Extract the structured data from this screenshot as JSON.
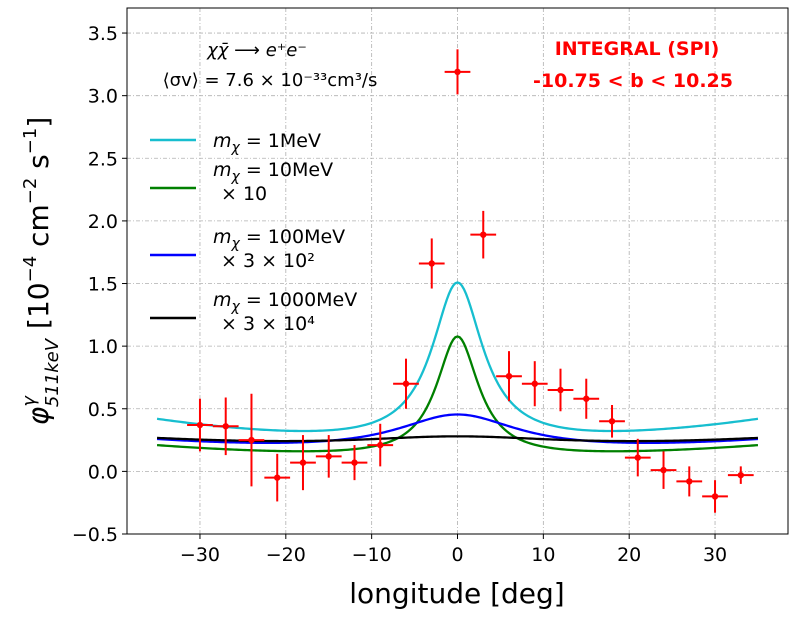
{
  "chart_data": {
    "type": "line",
    "xlabel": "longitude [deg]",
    "ylabel_sym": "φ",
    "ylabel_sup": "γ",
    "ylabel_sub": "511keV",
    "ylabel_unit": "[10",
    "ylabel_unit_exp1": "−4",
    "ylabel_unit_mid": " cm",
    "ylabel_unit_exp2": "−2",
    "ylabel_unit_end": " s",
    "ylabel_unit_exp3": "−1",
    "ylabel_unit_close": "]",
    "xlim": [
      -38.5,
      38.5
    ],
    "ylim": [
      -0.5,
      3.7
    ],
    "xticks": [
      -30,
      -20,
      -10,
      0,
      10,
      20,
      30
    ],
    "xtick_labels": [
      "−30",
      "−20",
      "−10",
      "0",
      "10",
      "20",
      "30"
    ],
    "yticks": [
      -0.5,
      0.0,
      0.5,
      1.0,
      1.5,
      2.0,
      2.5,
      3.0,
      3.5
    ],
    "ytick_labels": [
      "−0.5",
      "0.0",
      "0.5",
      "1.0",
      "1.5",
      "2.0",
      "2.5",
      "3.0",
      "3.5"
    ],
    "grid": true,
    "annotations": {
      "process": "χχ̄ ⟶ e⁺e⁻",
      "cross_section": "⟨σv⟩ = 7.6 × 10⁻³³cm³/s",
      "experiment": "INTEGRAL (SPI)",
      "latitude_range": "-10.75  <  b  <  10.25"
    },
    "series": [
      {
        "name": "mχ = 1MeV",
        "label_line1": "m",
        "label_sub": "χ",
        "label_rest": " = 1MeV",
        "label_line2": "",
        "color": "#17becf",
        "peak": 1.69,
        "gamma": 3.6,
        "tail": 0.225
      },
      {
        "name": "mχ = 10MeV × 10",
        "label_line1": "m",
        "label_sub": "χ",
        "label_rest": " = 10MeV",
        "label_line2": "× 10",
        "color": "#008000",
        "peak": 1.17,
        "gamma": 3.0,
        "tail": 0.11
      },
      {
        "name": "mχ = 100MeV × 3×10²",
        "label_line1": "m",
        "label_sub": "χ",
        "label_rest": " = 100MeV",
        "label_line2": "× 3 × 10²",
        "color": "#0000ff",
        "peak": 0.545,
        "gamma": 8.8,
        "tail": 0.15
      },
      {
        "name": "mχ = 1000MeV × 3×10⁴",
        "label_line1": "m",
        "label_sub": "χ",
        "label_rest": " = 1000MeV",
        "label_line2": "× 3 × 10⁴",
        "color": "#000000",
        "peak": 0.35,
        "gamma": 16.0,
        "tail": 0.18
      }
    ],
    "curve_x_range": [
      -35,
      35
    ],
    "data_points": {
      "name": "INTEGRAL (SPI)",
      "color": "#ff0000",
      "x_err": 1.5,
      "points": [
        {
          "x": -30.0,
          "y": 0.37,
          "yerr": 0.21
        },
        {
          "x": -27.0,
          "y": 0.36,
          "yerr": 0.23
        },
        {
          "x": -24.0,
          "y": 0.25,
          "yerr": 0.37
        },
        {
          "x": -21.0,
          "y": -0.05,
          "yerr": 0.19
        },
        {
          "x": -18.0,
          "y": 0.07,
          "yerr": 0.22
        },
        {
          "x": -15.0,
          "y": 0.12,
          "yerr": 0.17
        },
        {
          "x": -12.0,
          "y": 0.07,
          "yerr": 0.14
        },
        {
          "x": -9.0,
          "y": 0.21,
          "yerr": 0.17
        },
        {
          "x": -6.0,
          "y": 0.7,
          "yerr": 0.2
        },
        {
          "x": -3.0,
          "y": 1.66,
          "yerr": 0.2
        },
        {
          "x": 0.0,
          "y": 3.19,
          "yerr": 0.18
        },
        {
          "x": 3.0,
          "y": 1.89,
          "yerr": 0.19
        },
        {
          "x": 6.0,
          "y": 0.76,
          "yerr": 0.2
        },
        {
          "x": 9.0,
          "y": 0.7,
          "yerr": 0.18
        },
        {
          "x": 12.0,
          "y": 0.65,
          "yerr": 0.17
        },
        {
          "x": 15.0,
          "y": 0.58,
          "yerr": 0.16
        },
        {
          "x": 18.0,
          "y": 0.4,
          "yerr": 0.13
        },
        {
          "x": 21.0,
          "y": 0.11,
          "yerr": 0.15
        },
        {
          "x": 24.0,
          "y": 0.01,
          "yerr": 0.15
        },
        {
          "x": 27.0,
          "y": -0.08,
          "yerr": 0.12
        },
        {
          "x": 30.0,
          "y": -0.2,
          "yerr": 0.13
        },
        {
          "x": 33.0,
          "y": -0.03,
          "yerr": 0.07
        }
      ]
    }
  }
}
